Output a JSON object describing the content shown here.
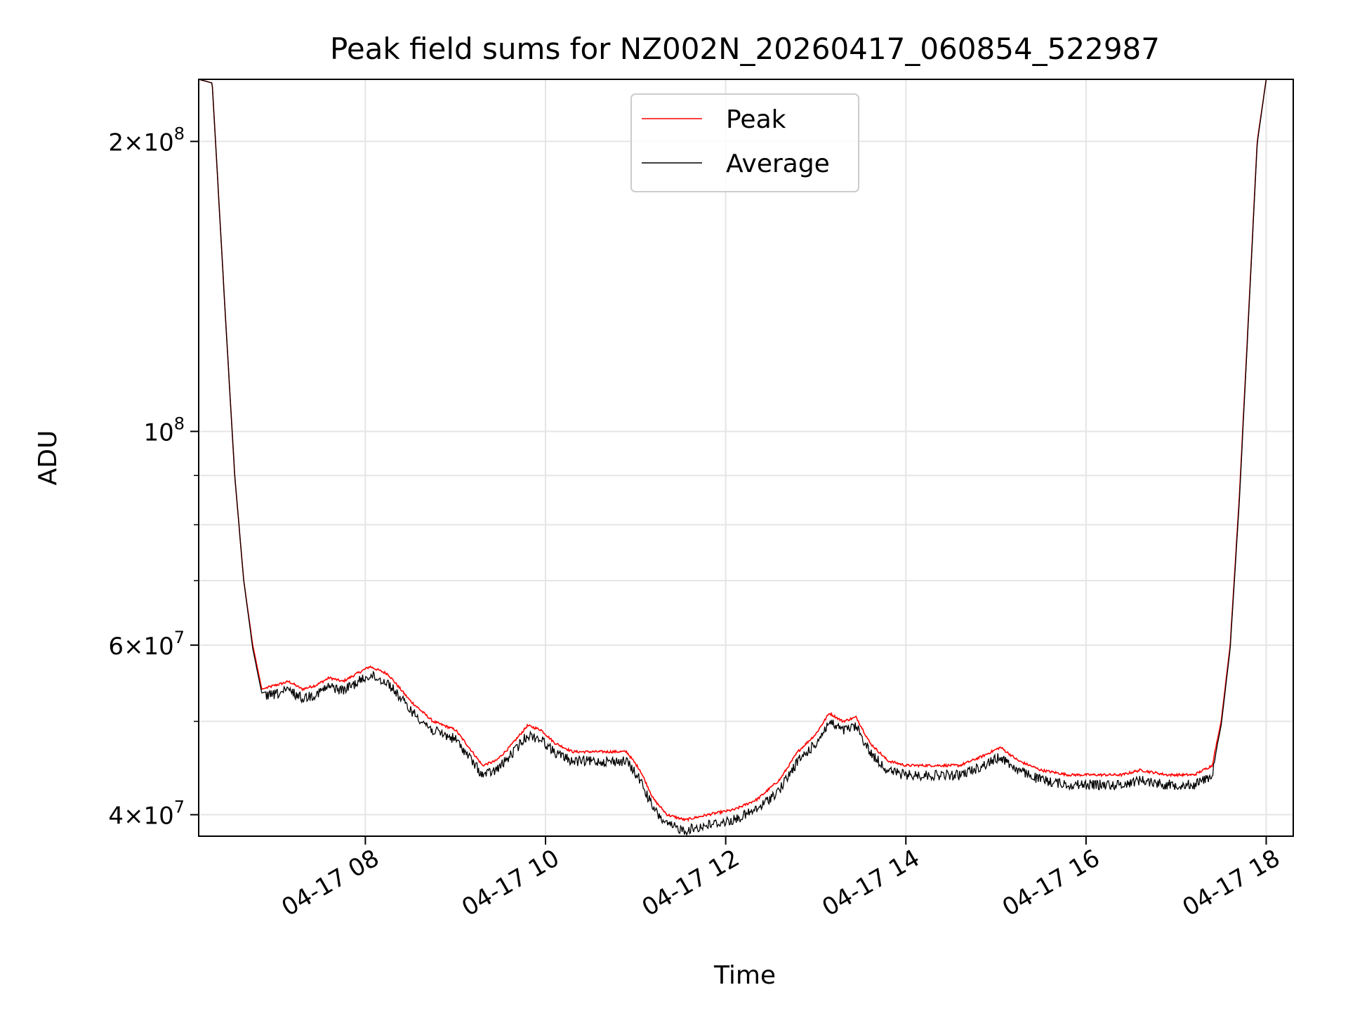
{
  "chart_data": {
    "type": "line",
    "title": "Peak field sums for NZ002N_20260417_060854_522987",
    "xlabel": "Time",
    "ylabel": "ADU",
    "yscale": "log",
    "x_unit": "hours (2026-04-17)",
    "xlim": [
      6.15,
      18.3
    ],
    "ylim": [
      38000000,
      232000000
    ],
    "grid": true,
    "legend_position": "top-center",
    "x_ticks": [
      {
        "value": 8,
        "label": "04-17 08"
      },
      {
        "value": 10,
        "label": "04-17 10"
      },
      {
        "value": 12,
        "label": "04-17 12"
      },
      {
        "value": 14,
        "label": "04-17 14"
      },
      {
        "value": 16,
        "label": "04-17 16"
      },
      {
        "value": 18,
        "label": "04-17 18"
      }
    ],
    "y_ticks": [
      {
        "value": 40000000,
        "base": "4×10",
        "exp": "7"
      },
      {
        "value": 60000000,
        "base": "6×10",
        "exp": "7"
      },
      {
        "value": 100000000,
        "base": "10",
        "exp": "8"
      },
      {
        "value": 200000000,
        "base": "2×10",
        "exp": "8"
      }
    ],
    "y_minor_ticks": [
      50000000,
      70000000,
      80000000,
      90000000
    ],
    "x": [
      6.15,
      6.3,
      6.45,
      6.55,
      6.65,
      6.75,
      6.85,
      7.0,
      7.15,
      7.3,
      7.45,
      7.6,
      7.75,
      7.9,
      8.05,
      8.25,
      8.5,
      8.75,
      9.0,
      9.15,
      9.3,
      9.45,
      9.6,
      9.8,
      9.95,
      10.1,
      10.3,
      10.6,
      10.9,
      11.05,
      11.2,
      11.35,
      11.55,
      11.8,
      12.1,
      12.35,
      12.6,
      12.8,
      13.0,
      13.15,
      13.3,
      13.45,
      13.6,
      13.8,
      14.0,
      14.3,
      14.6,
      14.85,
      15.05,
      15.25,
      15.5,
      15.8,
      16.1,
      16.4,
      16.6,
      16.9,
      17.2,
      17.4,
      17.5,
      17.6,
      17.7,
      17.8,
      17.9,
      18.0
    ],
    "series": [
      {
        "name": "Peak",
        "color": "#ff0000",
        "values": [
          232000000,
          230000000,
          130000000,
          90000000,
          70000000,
          60000000,
          54000000,
          54500000,
          55000000,
          54000000,
          54500000,
          55500000,
          55000000,
          56000000,
          57000000,
          56000000,
          52500000,
          50000000,
          49000000,
          47000000,
          45000000,
          45500000,
          47000000,
          49500000,
          49000000,
          47500000,
          46500000,
          46500000,
          46500000,
          44500000,
          41500000,
          40000000,
          39500000,
          40000000,
          40500000,
          41500000,
          43500000,
          46500000,
          48500000,
          51000000,
          50000000,
          50500000,
          47500000,
          45500000,
          45000000,
          45000000,
          45000000,
          46000000,
          47000000,
          45500000,
          44500000,
          44000000,
          44000000,
          44000000,
          44500000,
          44000000,
          44000000,
          45000000,
          50000000,
          60000000,
          85000000,
          130000000,
          200000000,
          232000000
        ]
      },
      {
        "name": "Average",
        "color": "#000000",
        "values": [
          232000000,
          230000000,
          130000000,
          90000000,
          70000000,
          59500000,
          53500000,
          54000000,
          54500000,
          53500000,
          54000000,
          55000000,
          54500000,
          55500000,
          56500000,
          55500000,
          52000000,
          49500000,
          48500000,
          46500000,
          44500000,
          45000000,
          46500000,
          49000000,
          48500000,
          47000000,
          46000000,
          46000000,
          46000000,
          44000000,
          41000000,
          39500000,
          39000000,
          39500000,
          40000000,
          41000000,
          43000000,
          46000000,
          48000000,
          50500000,
          49500000,
          50000000,
          47000000,
          45000000,
          44500000,
          44500000,
          44500000,
          45500000,
          46500000,
          45000000,
          44000000,
          43500000,
          43500000,
          43500000,
          44000000,
          43500000,
          43500000,
          44500000,
          49500000,
          59500000,
          84000000,
          129000000,
          199000000,
          232000000
        ]
      }
    ],
    "noise_amplitude_avg": 0.012
  }
}
